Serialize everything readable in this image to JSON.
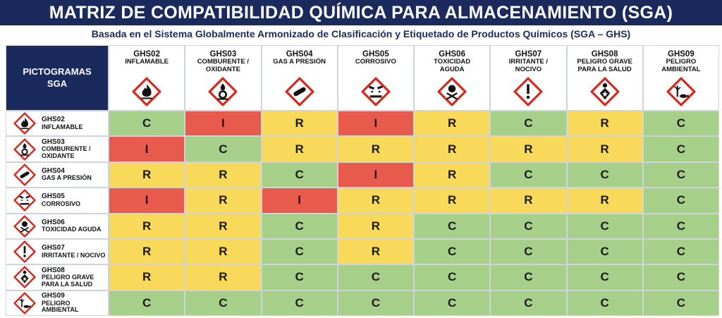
{
  "header": {
    "title": "MATRIZ DE COMPATIBILIDAD QUÍMICA PARA ALMACENAMIENTO (SGA)",
    "subtitle": "Basada en el Sistema Globalmente Armonizado de Clasificación y Etiquetado de Productos Químicos (SGA – GHS)"
  },
  "table": {
    "corner": "PICTOGRAMAS SGA",
    "cell_colors": {
      "C": "#a6d08a",
      "R": "#f8d95a",
      "I": "#e85a4c"
    },
    "columns": [
      {
        "code": "GHS02",
        "name": "INFLAMABLE"
      },
      {
        "code": "GHS03",
        "name": "COMBURENTE / OXIDANTE"
      },
      {
        "code": "GHS04",
        "name": "GAS A PRESIÓN"
      },
      {
        "code": "GHS05",
        "name": "CORROSIVO"
      },
      {
        "code": "GHS06",
        "name": "TOXICIDAD AGUDA"
      },
      {
        "code": "GHS07",
        "name": "IRRITANTE / NOCIVO"
      },
      {
        "code": "GHS08",
        "name": "PELIGRO GRAVE PARA LA SALUD"
      },
      {
        "code": "GHS09",
        "name": "PELIGRO AMBIENTAL"
      }
    ],
    "rows": [
      {
        "code": "GHS02",
        "name": "INFLAMABLE",
        "cells": [
          "C",
          "I",
          "R",
          "I",
          "R",
          "C",
          "R",
          "C"
        ]
      },
      {
        "code": "GHS03",
        "name": "COMBURENTE / OXIDANTE",
        "cells": [
          "I",
          "C",
          "R",
          "R",
          "R",
          "R",
          "R",
          "C"
        ]
      },
      {
        "code": "GHS04",
        "name": "GAS A PRESIÓN",
        "cells": [
          "R",
          "R",
          "C",
          "I",
          "R",
          "C",
          "C",
          "C"
        ]
      },
      {
        "code": "GHS05",
        "name": "CORROSIVO",
        "cells": [
          "I",
          "R",
          "I",
          "R",
          "R",
          "R",
          "R",
          "C"
        ]
      },
      {
        "code": "GHS06",
        "name": "TOXICIDAD AGUDA",
        "cells": [
          "R",
          "R",
          "C",
          "R",
          "C",
          "C",
          "C",
          "C"
        ]
      },
      {
        "code": "GHS07",
        "name": "IRRITANTE / NOCIVO",
        "cells": [
          "R",
          "R",
          "C",
          "R",
          "C",
          "C",
          "C",
          "C"
        ]
      },
      {
        "code": "GHS08",
        "name": "PELIGRO GRAVE PARA LA SALUD",
        "cells": [
          "R",
          "R",
          "C",
          "C",
          "C",
          "C",
          "C",
          "C"
        ]
      },
      {
        "code": "GHS09",
        "name": "PELIGRO AMBIENTAL",
        "cells": [
          "C",
          "C",
          "C",
          "C",
          "C",
          "C",
          "C",
          "C"
        ]
      }
    ]
  }
}
